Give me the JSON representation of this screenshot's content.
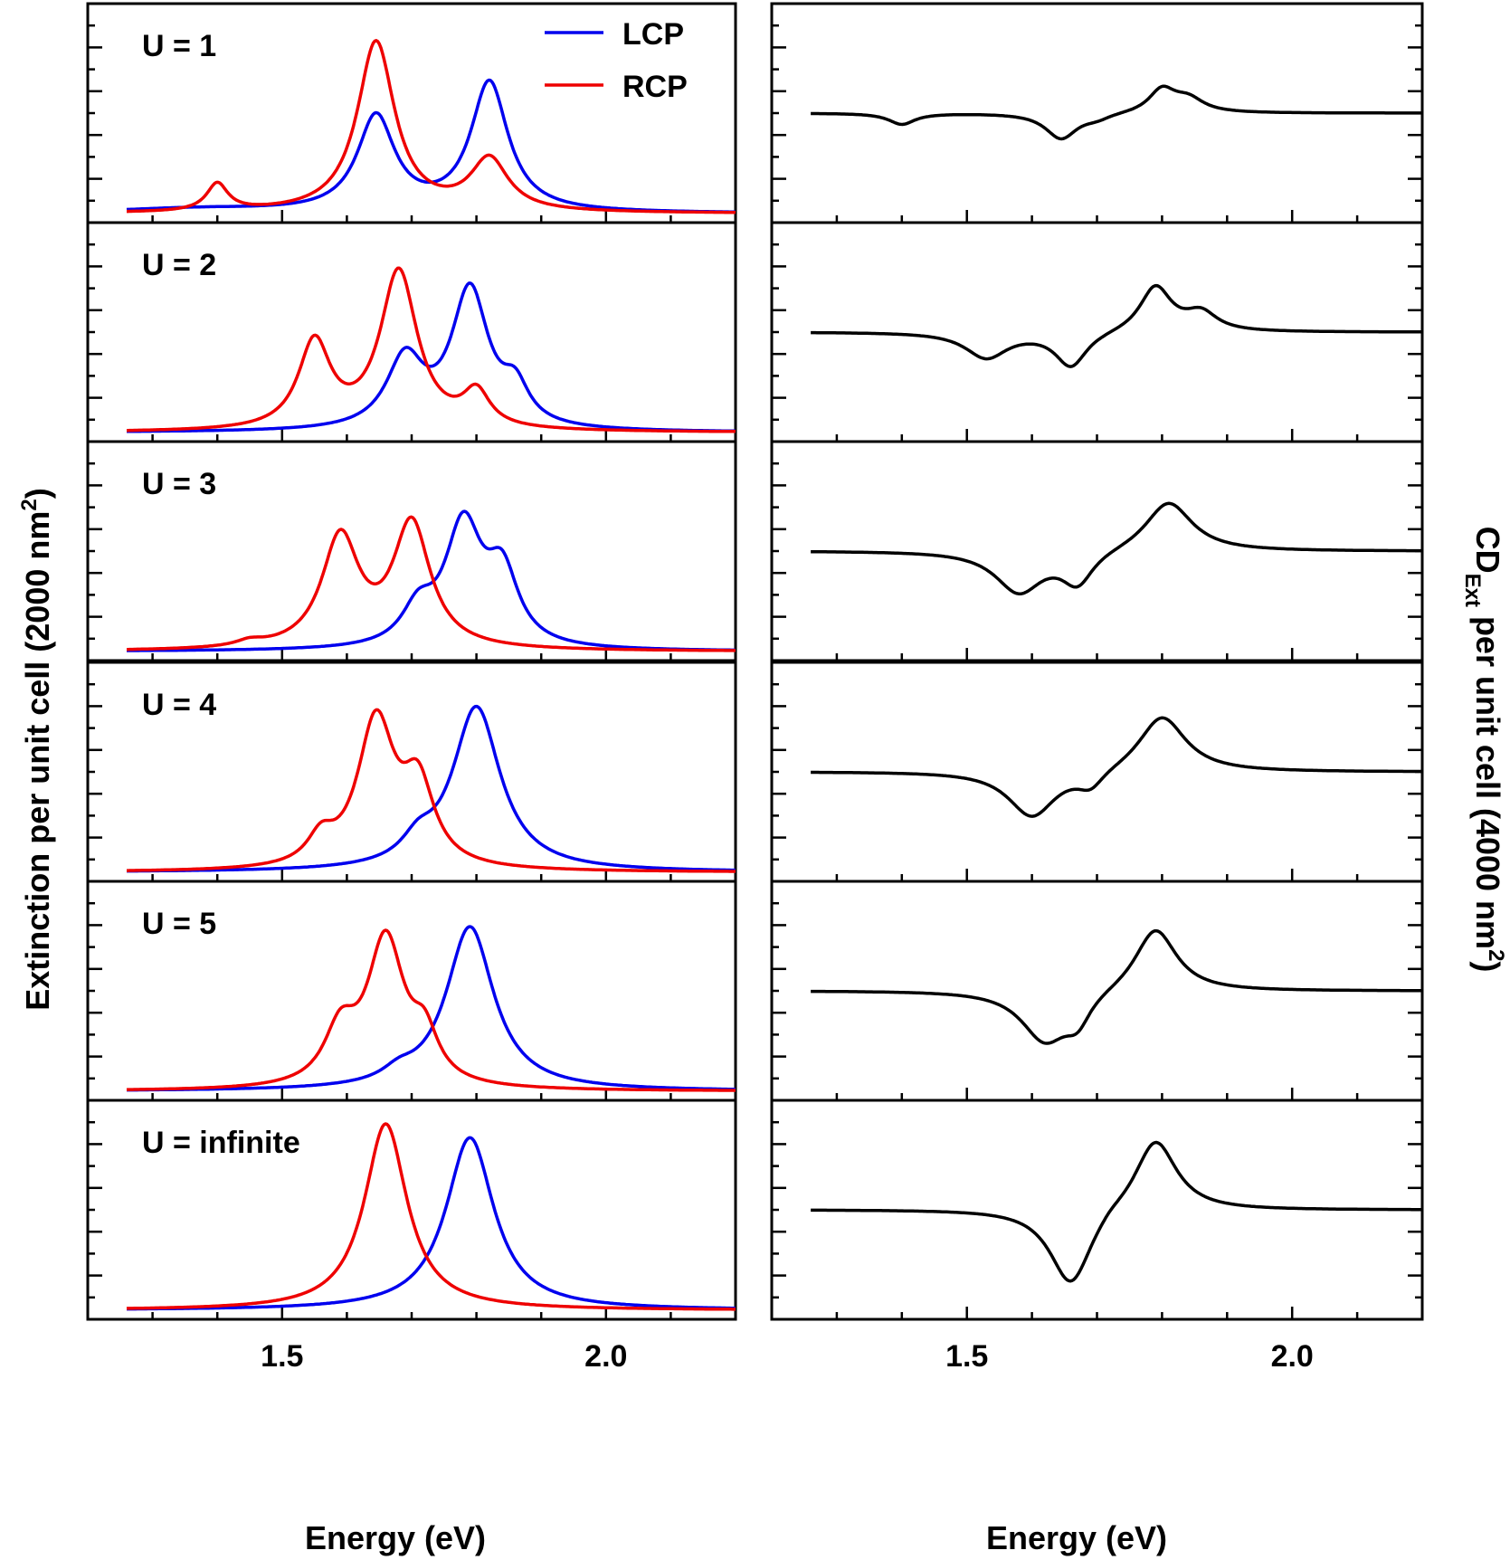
{
  "chart_data": [
    {
      "type": "line",
      "title": "",
      "xlabel": "Energy (eV)",
      "ylabel": "Extinction per unit cell (2000 nm",
      "ylabel_sup": "2",
      "ylabel_tail": ")",
      "xlim": [
        1.2,
        2.2
      ],
      "xticks": [
        1.5,
        2.0
      ],
      "xtick_labels": [
        "1.5",
        "2.0"
      ],
      "legend": [
        "LCP",
        "RCP"
      ],
      "legend_position": "top-right of first panel",
      "colors": {
        "LCP": "#0000ee",
        "RCP": "#ee0000"
      },
      "panels": [
        {
          "label": "U = 1",
          "baseline": 0.0,
          "lcp": [
            [
              1.37,
              0.025,
              0.3
            ],
            [
              1.645,
              0.55,
              0.07
            ],
            [
              1.82,
              0.75,
              0.07
            ]
          ],
          "rcp": [
            [
              1.4,
              0.16,
              0.04
            ],
            [
              1.645,
              0.99,
              0.07
            ],
            [
              1.82,
              0.3,
              0.07
            ]
          ]
        },
        {
          "label": "U = 2",
          "baseline": 0.0,
          "lcp": [
            [
              1.69,
              0.4,
              0.07
            ],
            [
              1.79,
              0.8,
              0.07
            ],
            [
              1.86,
              0.2,
              0.05
            ]
          ],
          "rcp": [
            [
              1.55,
              0.5,
              0.06
            ],
            [
              1.68,
              0.92,
              0.07
            ],
            [
              1.8,
              0.2,
              0.05
            ]
          ]
        },
        {
          "label": "U = 3",
          "baseline": 0.0,
          "lcp": [
            [
              1.71,
              0.2,
              0.06
            ],
            [
              1.78,
              0.7,
              0.07
            ],
            [
              1.84,
              0.4,
              0.06
            ]
          ],
          "rcp": [
            [
              1.59,
              0.64,
              0.07
            ],
            [
              1.7,
              0.72,
              0.07
            ],
            [
              1.45,
              0.03,
              0.05
            ]
          ]
        },
        {
          "label": "U = 4",
          "baseline": 0.0,
          "lcp": [
            [
              1.71,
              0.12,
              0.06
            ],
            [
              1.8,
              0.95,
              0.09
            ]
          ],
          "rcp": [
            [
              1.56,
              0.15,
              0.05
            ],
            [
              1.645,
              0.85,
              0.07
            ],
            [
              1.71,
              0.45,
              0.06
            ]
          ]
        },
        {
          "label": "U = 5",
          "baseline": 0.0,
          "lcp": [
            [
              1.68,
              0.06,
              0.06
            ],
            [
              1.79,
              0.95,
              0.09
            ]
          ],
          "rcp": [
            [
              1.59,
              0.3,
              0.06
            ],
            [
              1.66,
              0.85,
              0.07
            ],
            [
              1.72,
              0.25,
              0.05
            ]
          ]
        },
        {
          "label": "U = infinite",
          "baseline": 0.0,
          "lcp": [
            [
              1.79,
              1.0,
              0.09
            ]
          ],
          "rcp": [
            [
              1.66,
              1.08,
              0.08
            ]
          ]
        }
      ]
    },
    {
      "type": "line",
      "title": "",
      "xlabel": "Energy (eV)",
      "ylabel_prefix": "CD",
      "ylabel_sub": "Ext",
      "ylabel_mid": " per unit cell (4000 nm",
      "ylabel_sup": "2",
      "ylabel_tail": ")",
      "xlim": [
        1.2,
        2.2
      ],
      "xticks": [
        1.5,
        2.0
      ],
      "xtick_labels": [
        "1.5",
        "2.0"
      ],
      "color": "#000000",
      "panels": [
        {
          "baseline": 0.0,
          "features": [
            [
              1.4,
              -0.12,
              0.05
            ],
            [
              1.645,
              -0.28,
              0.06
            ],
            [
              1.7,
              -0.05,
              0.05
            ],
            [
              1.8,
              0.25,
              0.05
            ],
            [
              1.84,
              0.15,
              0.06
            ]
          ]
        },
        {
          "baseline": 0.0,
          "features": [
            [
              1.53,
              -0.28,
              0.08
            ],
            [
              1.66,
              -0.38,
              0.06
            ],
            [
              1.79,
              0.5,
              0.06
            ],
            [
              1.86,
              0.2,
              0.06
            ]
          ]
        },
        {
          "baseline": 0.0,
          "features": [
            [
              1.58,
              -0.45,
              0.09
            ],
            [
              1.67,
              -0.35,
              0.06
            ],
            [
              1.81,
              0.55,
              0.09
            ]
          ]
        },
        {
          "baseline": 0.0,
          "features": [
            [
              1.6,
              -0.5,
              0.09
            ],
            [
              1.69,
              -0.18,
              0.05
            ],
            [
              1.8,
              0.62,
              0.09
            ]
          ]
        },
        {
          "baseline": 0.0,
          "features": [
            [
              1.62,
              -0.55,
              0.09
            ],
            [
              1.67,
              -0.28,
              0.05
            ],
            [
              1.79,
              0.7,
              0.08
            ]
          ]
        },
        {
          "baseline": 0.0,
          "features": [
            [
              1.66,
              -0.85,
              0.08
            ],
            [
              1.79,
              0.8,
              0.08
            ],
            [
              1.72,
              0.05,
              0.05
            ]
          ]
        }
      ]
    }
  ]
}
